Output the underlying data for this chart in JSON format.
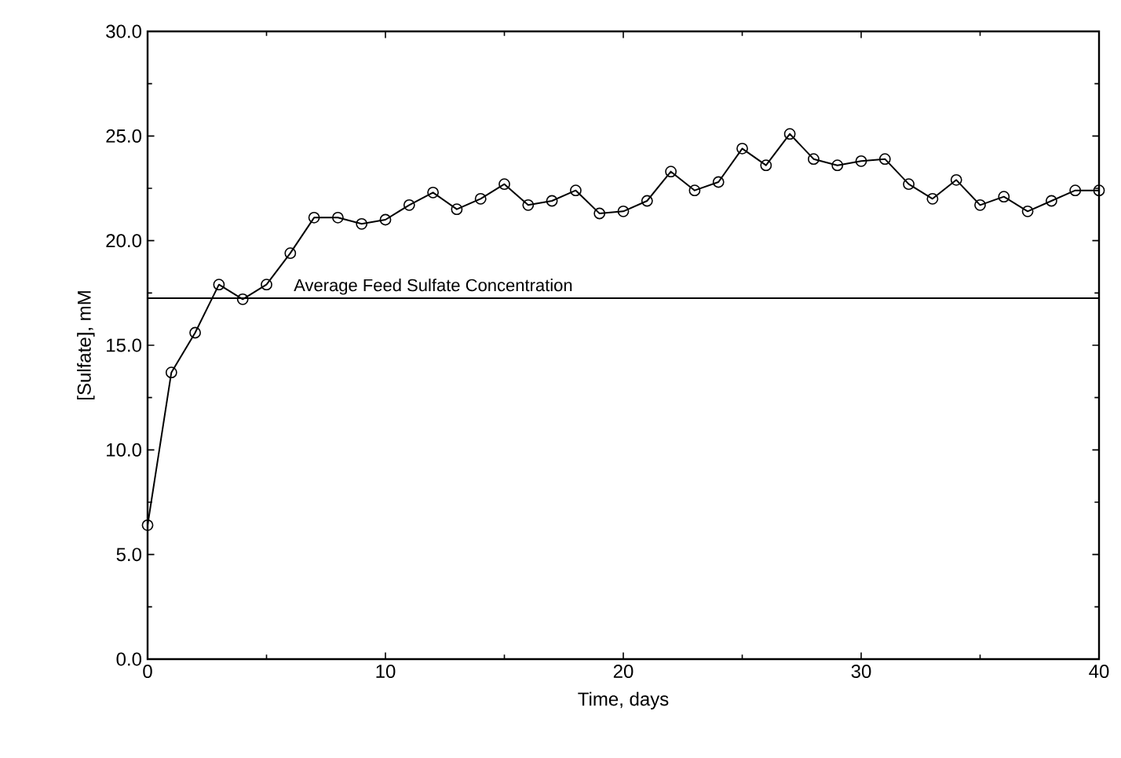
{
  "chart_data": {
    "type": "line",
    "xlabel": "Time, days",
    "ylabel": "[Sulfate], mM",
    "marker": "circle",
    "color": "#000000",
    "grid": false,
    "x": [
      0,
      1,
      2,
      3,
      4,
      5,
      6,
      7,
      8,
      9,
      10,
      11,
      12,
      13,
      14,
      15,
      16,
      17,
      18,
      19,
      20,
      21,
      22,
      23,
      24,
      25,
      26,
      27,
      28,
      29,
      30,
      31,
      32,
      33,
      34,
      35,
      36,
      37,
      38,
      39,
      40
    ],
    "values": [
      6.4,
      13.7,
      15.6,
      17.9,
      17.2,
      17.9,
      19.4,
      21.1,
      21.1,
      20.8,
      21.0,
      21.7,
      22.3,
      21.5,
      22.0,
      22.7,
      21.7,
      21.9,
      22.4,
      21.3,
      21.4,
      21.9,
      23.3,
      22.4,
      22.8,
      24.4,
      23.6,
      25.1,
      23.9,
      23.6,
      23.8,
      23.9,
      22.7,
      22.0,
      22.9,
      21.7,
      22.1,
      21.4,
      21.9,
      22.4,
      22.4
    ],
    "xlim": [
      0,
      40
    ],
    "ylim": [
      0,
      30
    ],
    "xticks": [
      0,
      10,
      20,
      30,
      40
    ],
    "yticks": [
      {
        "value": 0,
        "label": "0.0"
      },
      {
        "value": 5,
        "label": "5.0"
      },
      {
        "value": 10,
        "label": "10.0"
      },
      {
        "value": 15,
        "label": "15.0"
      },
      {
        "value": 20,
        "label": "20.0"
      },
      {
        "value": 25,
        "label": "25.0"
      },
      {
        "value": 30,
        "label": "30.0"
      }
    ],
    "ref_lines": [
      {
        "axis": "y",
        "value": 17.25,
        "label": "Average Feed Sulfate Concentration",
        "color": "#000000"
      }
    ]
  }
}
